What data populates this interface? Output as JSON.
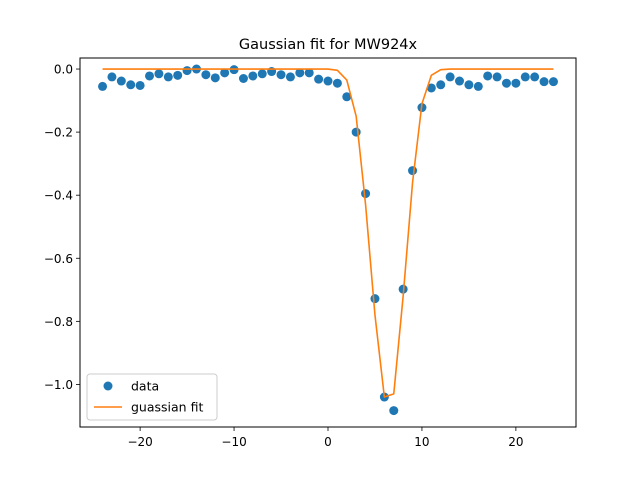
{
  "chart_data": {
    "type": "scatter",
    "title": "Gaussian fit for MW924x",
    "xlabel": "",
    "ylabel": "",
    "xlim": [
      -26.4,
      26.4
    ],
    "ylim": [
      -1.135,
      0.035
    ],
    "xticks": [
      -20,
      -10,
      0,
      10,
      20
    ],
    "xtick_labels": [
      "−20",
      "−10",
      "0",
      "10",
      "20"
    ],
    "yticks": [
      0.0,
      -0.2,
      -0.4,
      -0.6,
      -0.8,
      -1.0
    ],
    "ytick_labels": [
      "0.0",
      "−0.2",
      "−0.4",
      "−0.6",
      "−0.8",
      "−1.0"
    ],
    "grid": false,
    "legend_position": "lower left",
    "series": [
      {
        "name": "data",
        "kind": "scatter",
        "color": "#1f77b4",
        "x": [
          -24,
          -23,
          -22,
          -21,
          -20,
          -19,
          -18,
          -17,
          -16,
          -15,
          -14,
          -13,
          -12,
          -11,
          -10,
          -9,
          -8,
          -7,
          -6,
          -5,
          -4,
          -3,
          -2,
          -1,
          0,
          1,
          2,
          3,
          4,
          5,
          6,
          7,
          8,
          9,
          10,
          11,
          12,
          13,
          14,
          15,
          16,
          17,
          18,
          19,
          20,
          21,
          22,
          23,
          24
        ],
        "y": [
          -0.055,
          -0.025,
          -0.038,
          -0.05,
          -0.052,
          -0.022,
          -0.015,
          -0.025,
          -0.02,
          -0.005,
          0.0,
          -0.018,
          -0.028,
          -0.012,
          -0.002,
          -0.03,
          -0.022,
          -0.015,
          -0.008,
          -0.018,
          -0.025,
          -0.012,
          -0.012,
          -0.032,
          -0.038,
          -0.045,
          -0.088,
          -0.2,
          -0.395,
          -0.728,
          -1.04,
          -1.083,
          -0.698,
          -0.322,
          -0.122,
          -0.06,
          -0.05,
          -0.025,
          -0.038,
          -0.05,
          -0.055,
          -0.022,
          -0.025,
          -0.045,
          -0.045,
          -0.025,
          -0.025,
          -0.04,
          -0.04
        ]
      },
      {
        "name": "guassian fit",
        "kind": "line",
        "color": "#ff7f0e",
        "x": [
          -24,
          -23,
          -22,
          -21,
          -20,
          -19,
          -18,
          -17,
          -16,
          -15,
          -14,
          -13,
          -12,
          -11,
          -10,
          -9,
          -8,
          -7,
          -6,
          -5,
          -4,
          -3,
          -2,
          -1,
          0,
          1,
          2,
          3,
          4,
          5,
          6,
          7,
          8,
          9,
          10,
          11,
          12,
          13,
          14,
          15,
          16,
          17,
          18,
          19,
          20,
          21,
          22,
          23,
          24
        ],
        "y": [
          0.0,
          0.0,
          0.0,
          0.0,
          0.0,
          0.0,
          0.0,
          0.0,
          0.0,
          0.0,
          0.0,
          0.0,
          0.0,
          0.0,
          0.0,
          0.0,
          0.0,
          0.0,
          0.0,
          0.0,
          0.0,
          0.0,
          0.0,
          0.0,
          0.0,
          -0.004,
          -0.035,
          -0.15,
          -0.43,
          -0.78,
          -1.04,
          -1.03,
          -0.72,
          -0.36,
          -0.11,
          -0.02,
          -0.002,
          0.0,
          0.0,
          0.0,
          0.0,
          0.0,
          0.0,
          0.0,
          0.0,
          0.0,
          0.0,
          0.0,
          0.0
        ]
      }
    ]
  }
}
